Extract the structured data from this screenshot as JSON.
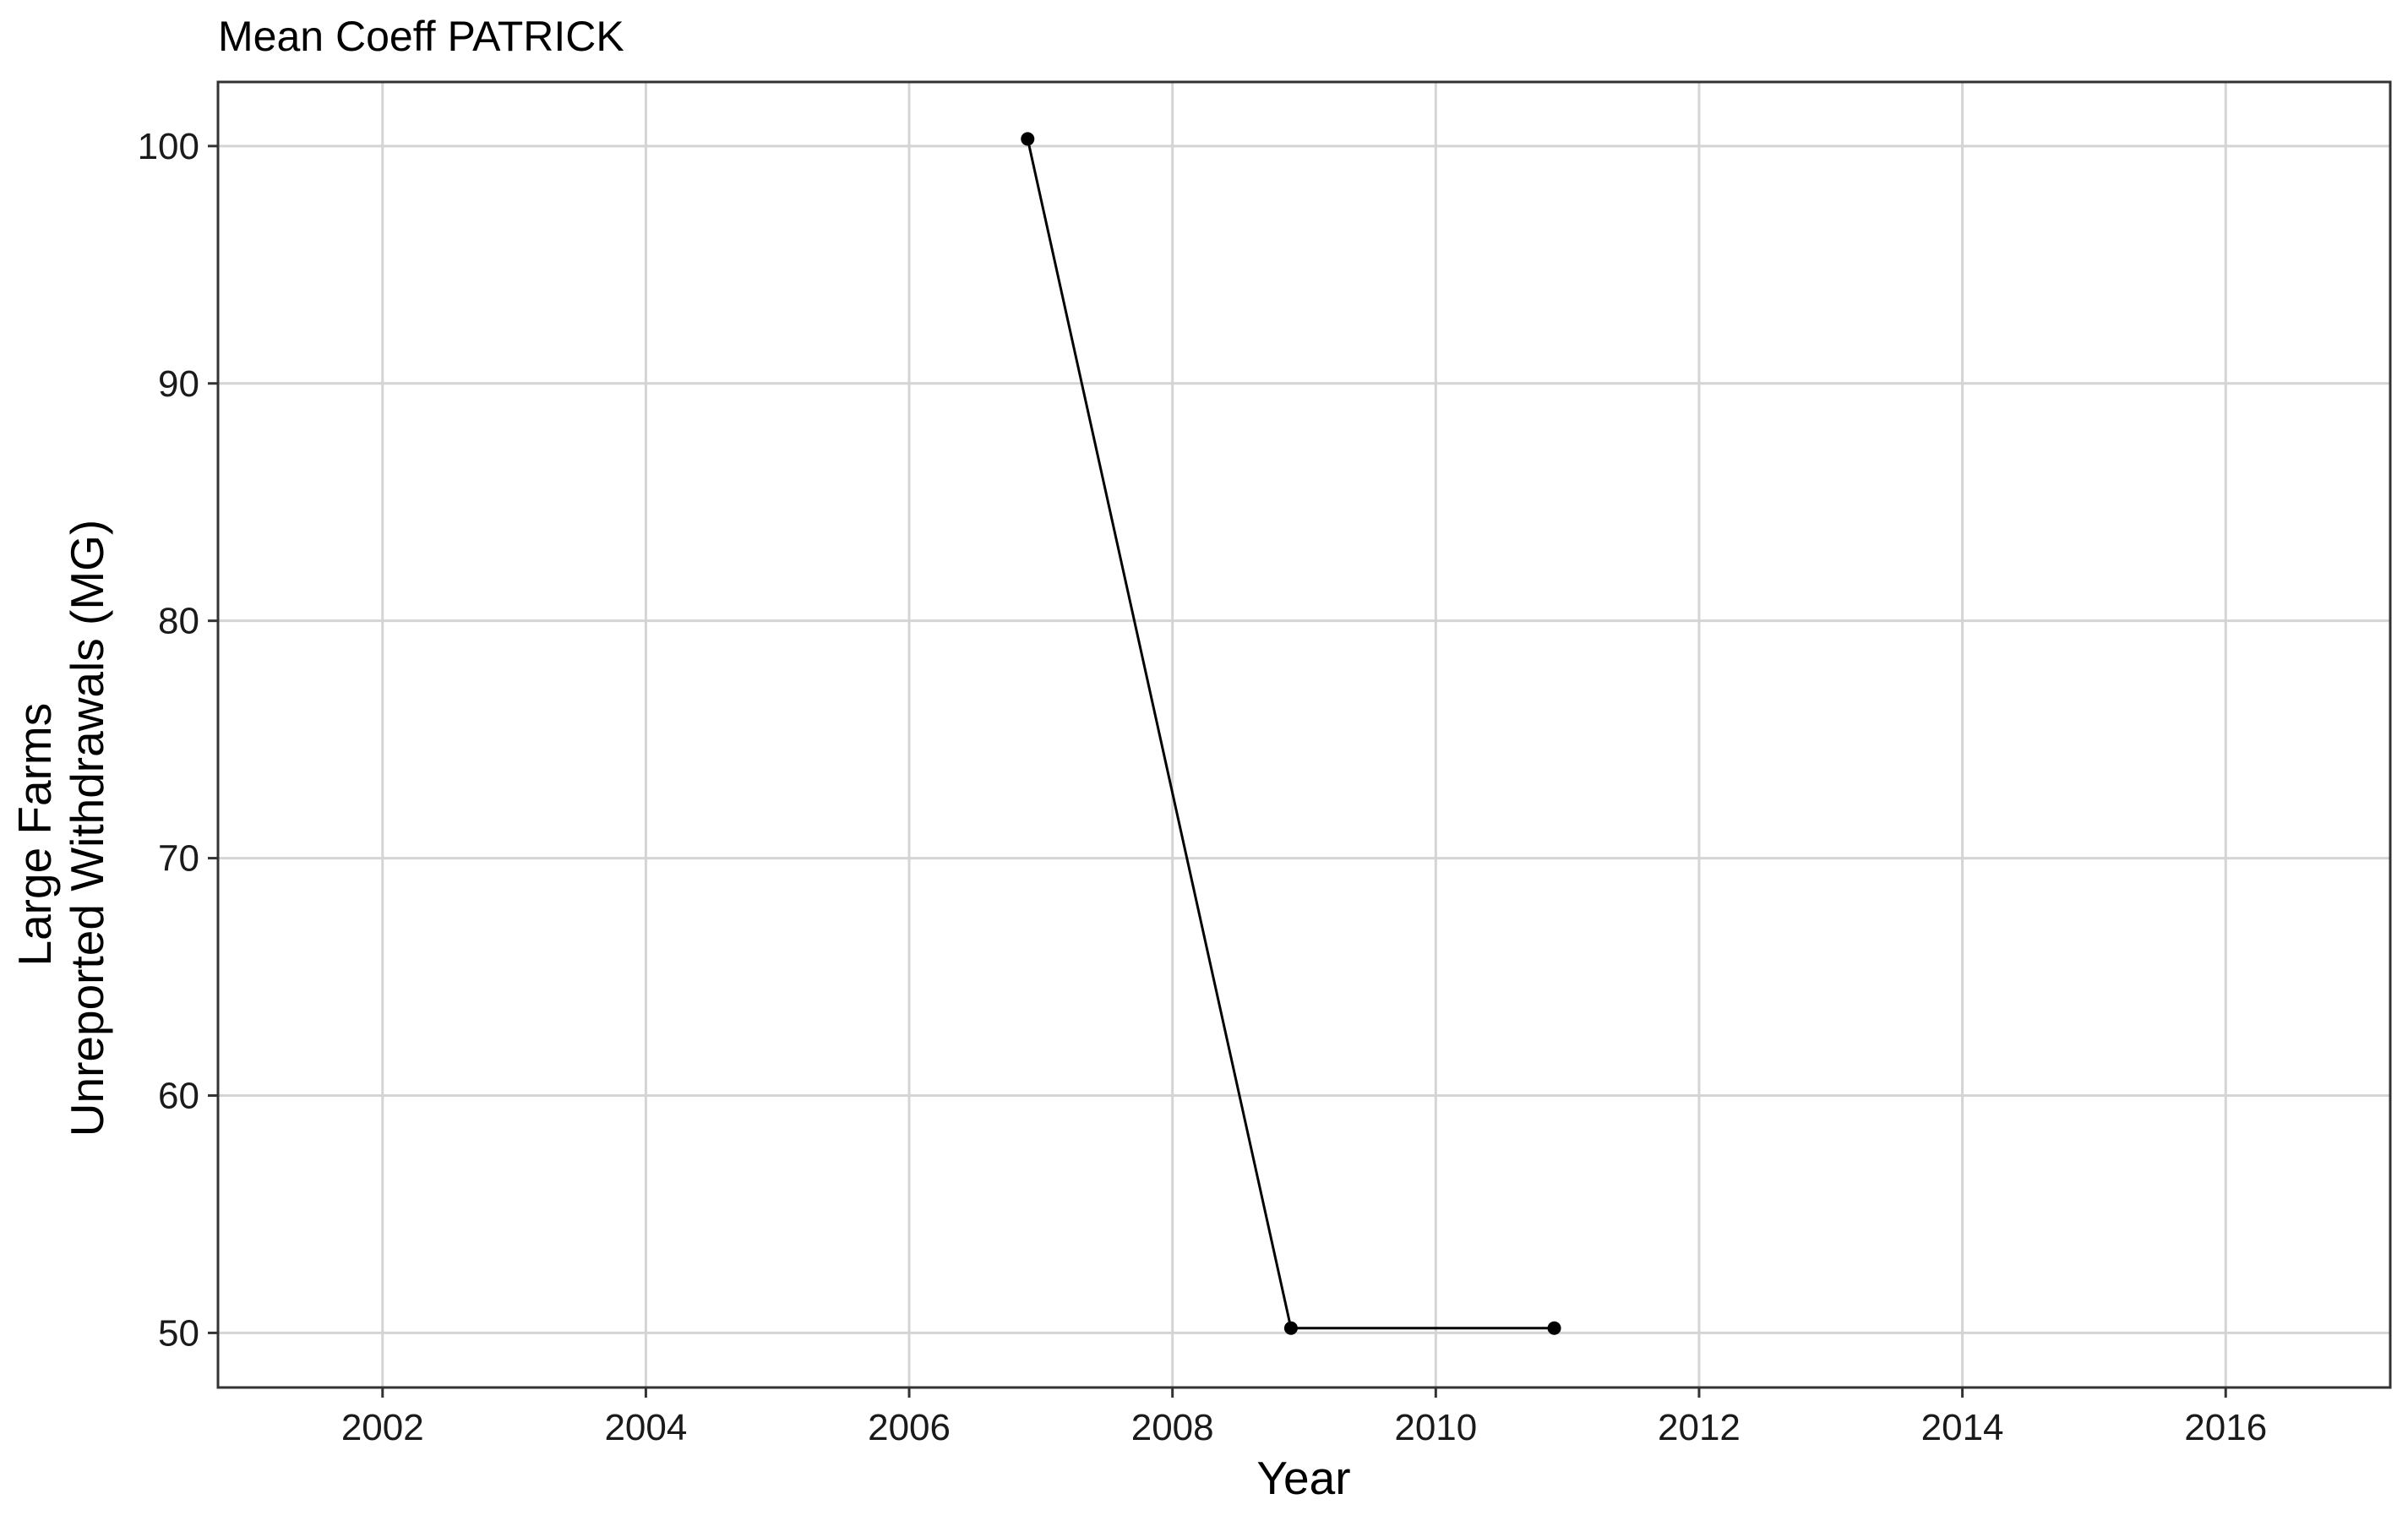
{
  "chart_data": {
    "type": "line",
    "title": "Mean Coeff PATRICK",
    "xlabel": "Year",
    "ylabel_lines": [
      "Large Farms",
      "Unreported Withdrawals (MG)"
    ],
    "xlim": [
      2000.75,
      2017.25
    ],
    "ylim": [
      47.7,
      102.7
    ],
    "x_ticks": [
      2002,
      2004,
      2006,
      2008,
      2010,
      2012,
      2014,
      2016
    ],
    "y_ticks": [
      50,
      60,
      70,
      80,
      90,
      100
    ],
    "grid": true,
    "series": [
      {
        "x": [
          2006.9,
          2008.9,
          2010.9
        ],
        "y": [
          100.3,
          50.2,
          50.2
        ]
      }
    ],
    "colors": {
      "line": "#000000",
      "grid": "#d4d4d4",
      "frame": "#333333"
    }
  }
}
